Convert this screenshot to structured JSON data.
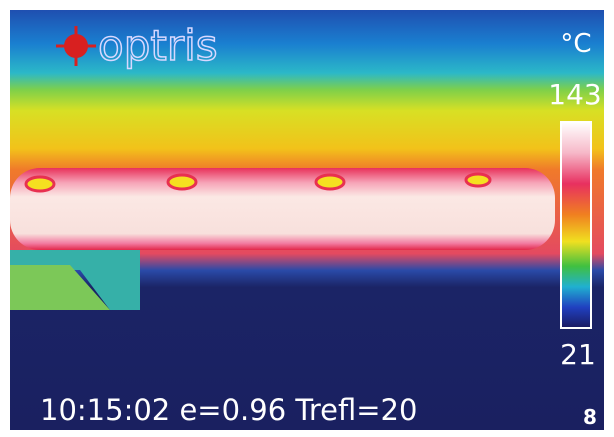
{
  "logo": "optris",
  "scale": {
    "unit": "°C",
    "max": 143,
    "min": 21
  },
  "status": "10:15:02 e=0.96 Trefl=20",
  "page_number": "8"
}
